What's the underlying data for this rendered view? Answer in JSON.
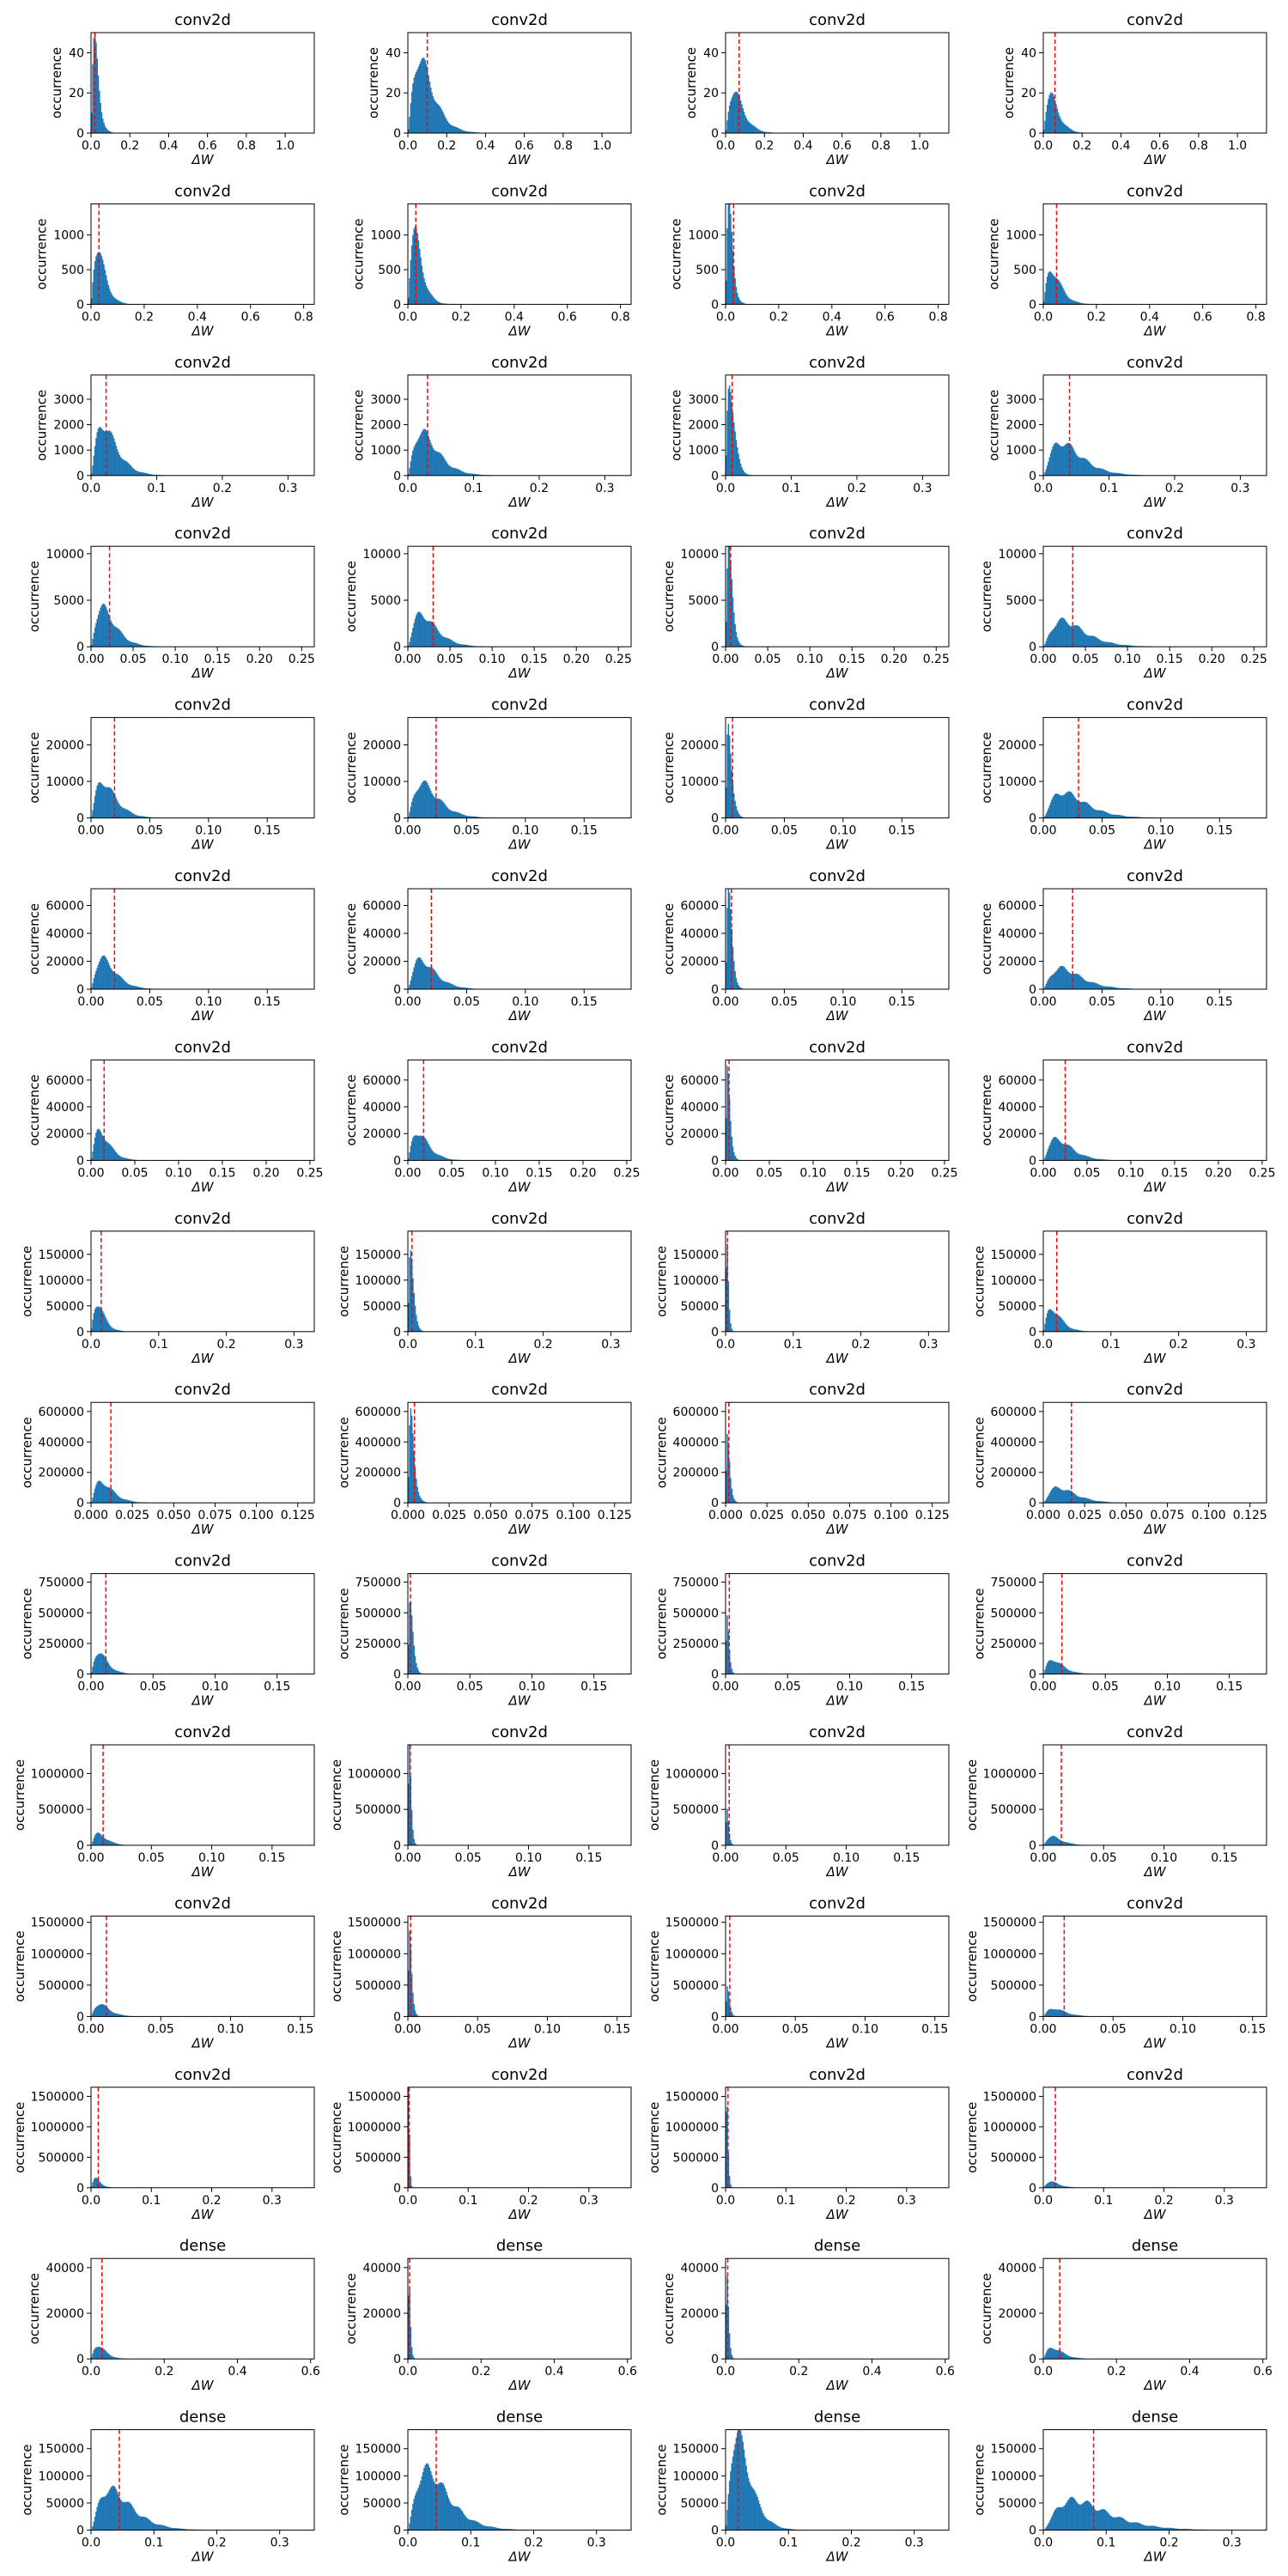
{
  "figure": {
    "rows": 15,
    "cols": 4,
    "ylabel": "occurrence",
    "xlabel": "ΔW"
  },
  "colors": {
    "bar": "#1f77b4",
    "threshold": "#ff0000",
    "axis": "#000000"
  },
  "rows": [
    {
      "title": "conv2d",
      "xmax": 1.15,
      "xticks": [
        0,
        0.2,
        0.4,
        0.6,
        0.8,
        1.0
      ],
      "ymax": 50,
      "yticks": [
        0,
        20,
        40
      ],
      "peaks": [
        45,
        37,
        21,
        19
      ],
      "means": [
        0.03,
        0.1,
        0.07,
        0.06
      ],
      "thr": [
        0.02,
        0.1,
        0.07,
        0.06
      ]
    },
    {
      "title": "conv2d",
      "xmax": 0.84,
      "xticks": [
        0,
        0.2,
        0.4,
        0.6,
        0.8
      ],
      "ymax": 1450,
      "yticks": [
        0,
        500,
        1000
      ],
      "peaks": [
        820,
        1050,
        1400,
        500
      ],
      "means": [
        0.04,
        0.04,
        0.02,
        0.05
      ],
      "thr": [
        0.03,
        0.03,
        0.03,
        0.05
      ]
    },
    {
      "title": "conv2d",
      "xmax": 0.34,
      "xticks": [
        0,
        0.1,
        0.2,
        0.3
      ],
      "ymax": 3950,
      "yticks": [
        0,
        1000,
        2000,
        3000
      ],
      "peaks": [
        2000,
        1700,
        3900,
        1300
      ],
      "means": [
        0.03,
        0.035,
        0.01,
        0.045
      ],
      "thr": [
        0.023,
        0.03,
        0.01,
        0.04
      ]
    },
    {
      "title": "conv2d",
      "xmax": 0.265,
      "xticks": [
        0,
        0.05,
        0.1,
        0.15,
        0.2,
        0.25
      ],
      "ymax": 10800,
      "yticks": [
        0,
        5000,
        10000
      ],
      "peaks": [
        4200,
        3500,
        10500,
        2800
      ],
      "means": [
        0.022,
        0.026,
        0.006,
        0.038
      ],
      "thr": [
        0.022,
        0.03,
        0.006,
        0.035
      ]
    },
    {
      "title": "conv2d",
      "xmax": 0.19,
      "xticks": [
        0,
        0.05,
        0.1,
        0.15
      ],
      "ymax": 27500,
      "yticks": [
        0,
        10000,
        20000
      ],
      "peaks": [
        10000,
        9500,
        27000,
        7000
      ],
      "means": [
        0.016,
        0.02,
        0.004,
        0.028
      ],
      "thr": [
        0.02,
        0.024,
        0.006,
        0.03
      ]
    },
    {
      "title": "conv2d",
      "xmax": 0.19,
      "xticks": [
        0,
        0.05,
        0.1,
        0.15
      ],
      "ymax": 72000,
      "yticks": [
        0,
        20000,
        40000,
        60000
      ],
      "peaks": [
        22000,
        21000,
        70000,
        15000
      ],
      "means": [
        0.016,
        0.018,
        0.004,
        0.025
      ],
      "thr": [
        0.02,
        0.02,
        0.005,
        0.025
      ]
    },
    {
      "title": "conv2d",
      "xmax": 0.255,
      "xticks": [
        0,
        0.05,
        0.1,
        0.15,
        0.2,
        0.25
      ],
      "ymax": 75000,
      "yticks": [
        0,
        20000,
        40000,
        60000
      ],
      "peaks": [
        22000,
        21000,
        72000,
        16000
      ],
      "means": [
        0.016,
        0.018,
        0.004,
        0.025
      ],
      "thr": [
        0.015,
        0.018,
        0.004,
        0.025
      ]
    },
    {
      "title": "conv2d",
      "xmax": 0.33,
      "xticks": [
        0,
        0.1,
        0.2,
        0.3
      ],
      "ymax": 195000,
      "yticks": [
        0,
        50000,
        100000,
        150000
      ],
      "peaks": [
        55000,
        180000,
        190000,
        45000
      ],
      "means": [
        0.015,
        0.006,
        0.003,
        0.02
      ],
      "thr": [
        0.015,
        0.006,
        0.003,
        0.02
      ]
    },
    {
      "title": "conv2d",
      "xmax": 0.135,
      "xticks": [
        0,
        0.025,
        0.05,
        0.075,
        0.1,
        0.125
      ],
      "ymax": 660000,
      "yticks": [
        0,
        200000,
        400000,
        600000
      ],
      "peaks": [
        140000,
        560000,
        450000,
        100000
      ],
      "means": [
        0.01,
        0.003,
        0.002,
        0.015
      ],
      "thr": [
        0.012,
        0.004,
        0.002,
        0.017
      ]
    },
    {
      "title": "conv2d",
      "xmax": 0.18,
      "xticks": [
        0,
        0.05,
        0.1,
        0.15
      ],
      "ymax": 820000,
      "yticks": [
        0,
        250000,
        500000,
        750000
      ],
      "peaks": [
        180000,
        700000,
        500000,
        120000
      ],
      "means": [
        0.01,
        0.003,
        0.002,
        0.012
      ],
      "thr": [
        0.012,
        0.002,
        0.003,
        0.015
      ]
    },
    {
      "title": "conv2d",
      "xmax": 0.185,
      "xticks": [
        0,
        0.05,
        0.1,
        0.15
      ],
      "ymax": 1400000,
      "yticks": [
        0,
        500000,
        1000000
      ],
      "peaks": [
        160000,
        1300000,
        500000,
        120000
      ],
      "means": [
        0.01,
        0.002,
        0.002,
        0.012
      ],
      "thr": [
        0.01,
        0.002,
        0.003,
        0.015
      ]
    },
    {
      "title": "conv2d",
      "xmax": 0.16,
      "xticks": [
        0,
        0.05,
        0.1,
        0.15
      ],
      "ymax": 1600000,
      "yticks": [
        0,
        500000,
        1000000,
        1500000
      ],
      "peaks": [
        200000,
        1550000,
        500000,
        130000
      ],
      "means": [
        0.01,
        0.002,
        0.002,
        0.012
      ],
      "thr": [
        0.011,
        0.002,
        0.003,
        0.015
      ]
    },
    {
      "title": "conv2d",
      "xmax": 0.37,
      "xticks": [
        0,
        0.1,
        0.2,
        0.3
      ],
      "ymax": 1650000,
      "yticks": [
        0,
        500000,
        1000000,
        1500000
      ],
      "peaks": [
        150000,
        1600000,
        1500000,
        100000
      ],
      "means": [
        0.012,
        0.002,
        0.003,
        0.02
      ],
      "thr": [
        0.012,
        0.002,
        0.004,
        0.02
      ]
    },
    {
      "title": "dense",
      "xmax": 0.61,
      "xticks": [
        0,
        0.2,
        0.4,
        0.6
      ],
      "ymax": 44000,
      "yticks": [
        0,
        20000,
        40000
      ],
      "peaks": [
        6000,
        40000,
        40000,
        5000
      ],
      "means": [
        0.03,
        0.005,
        0.006,
        0.04
      ],
      "thr": [
        0.03,
        0.005,
        0.006,
        0.045
      ]
    },
    {
      "title": "dense",
      "xmax": 0.355,
      "xticks": [
        0,
        0.1,
        0.2,
        0.3
      ],
      "ymax": 185000,
      "yticks": [
        0,
        50000,
        100000,
        150000
      ],
      "peaks": [
        75000,
        110000,
        175000,
        55000
      ],
      "means": [
        0.05,
        0.05,
        0.03,
        0.08
      ],
      "thr": [
        0.045,
        0.045,
        0.02,
        0.08
      ]
    }
  ]
}
